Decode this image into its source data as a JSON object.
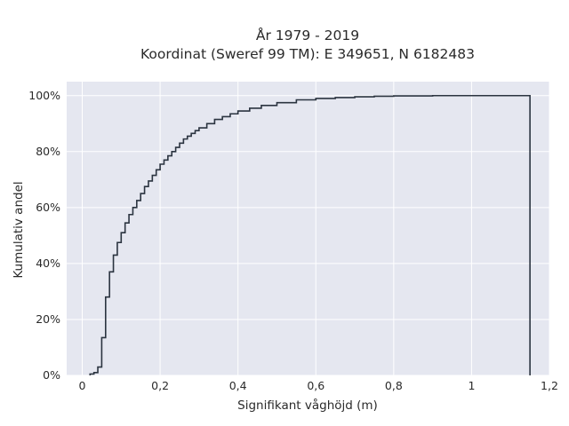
{
  "chart_data": {
    "type": "line",
    "step": true,
    "title_lines": [
      "År 1979 - 2019",
      "Koordinat (Sweref 99 TM): E 349651, N 6182483"
    ],
    "xlabel": "Signifikant våghöjd (m)",
    "ylabel": "Kumulativ andel",
    "xlim": [
      -0.04,
      1.2
    ],
    "ylim": [
      0,
      1.05
    ],
    "x_ticks": [
      0,
      0.2,
      0.4,
      0.6,
      0.8,
      1,
      1.2
    ],
    "x_tick_labels": [
      "0",
      "0,2",
      "0,4",
      "0,6",
      "0,8",
      "1",
      "1,2"
    ],
    "y_ticks": [
      0,
      0.2,
      0.4,
      0.6,
      0.8,
      1
    ],
    "y_tick_labels": [
      "0%",
      "20%",
      "40%",
      "60%",
      "80%",
      "100%"
    ],
    "grid": true,
    "colors": {
      "plot_background": "#e5e7f0",
      "grid": "#ffffff",
      "line": "#2b3440"
    },
    "x": [
      0.02,
      0.03,
      0.04,
      0.05,
      0.06,
      0.07,
      0.08,
      0.09,
      0.1,
      0.11,
      0.12,
      0.13,
      0.14,
      0.15,
      0.16,
      0.17,
      0.18,
      0.19,
      0.2,
      0.21,
      0.22,
      0.23,
      0.24,
      0.25,
      0.26,
      0.27,
      0.28,
      0.29,
      0.3,
      0.32,
      0.34,
      0.36,
      0.38,
      0.4,
      0.43,
      0.46,
      0.5,
      0.55,
      0.6,
      0.65,
      0.7,
      0.75,
      0.8,
      0.9,
      1.0,
      1.15
    ],
    "y": [
      0.005,
      0.01,
      0.03,
      0.135,
      0.28,
      0.37,
      0.43,
      0.475,
      0.51,
      0.545,
      0.575,
      0.6,
      0.625,
      0.65,
      0.675,
      0.695,
      0.715,
      0.735,
      0.755,
      0.77,
      0.785,
      0.8,
      0.815,
      0.83,
      0.845,
      0.855,
      0.865,
      0.875,
      0.885,
      0.9,
      0.915,
      0.925,
      0.935,
      0.945,
      0.955,
      0.965,
      0.975,
      0.985,
      0.99,
      0.993,
      0.996,
      0.998,
      0.999,
      1.0,
      1.0,
      1.0
    ],
    "final_drop_x": 1.15
  }
}
